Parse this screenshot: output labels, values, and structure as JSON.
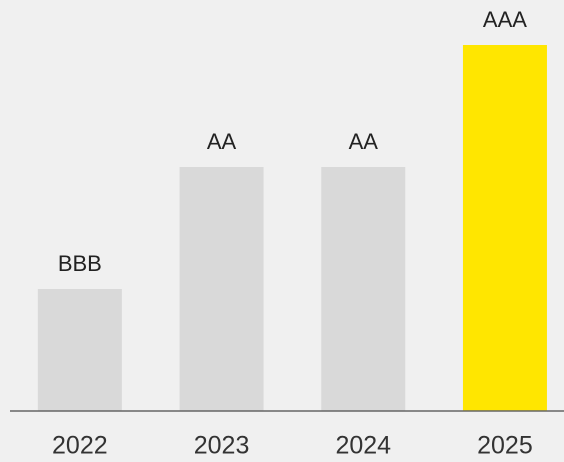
{
  "chart_data": {
    "type": "bar",
    "categories": [
      "2022",
      "2023",
      "2024",
      "2025"
    ],
    "values": [
      1,
      2,
      2,
      3
    ],
    "value_labels": [
      "BBB",
      "AA",
      "AA",
      "AAA"
    ],
    "colors": [
      "#d9d9d9",
      "#d9d9d9",
      "#d9d9d9",
      "#ffe600"
    ],
    "ylim": [
      0,
      3
    ]
  }
}
